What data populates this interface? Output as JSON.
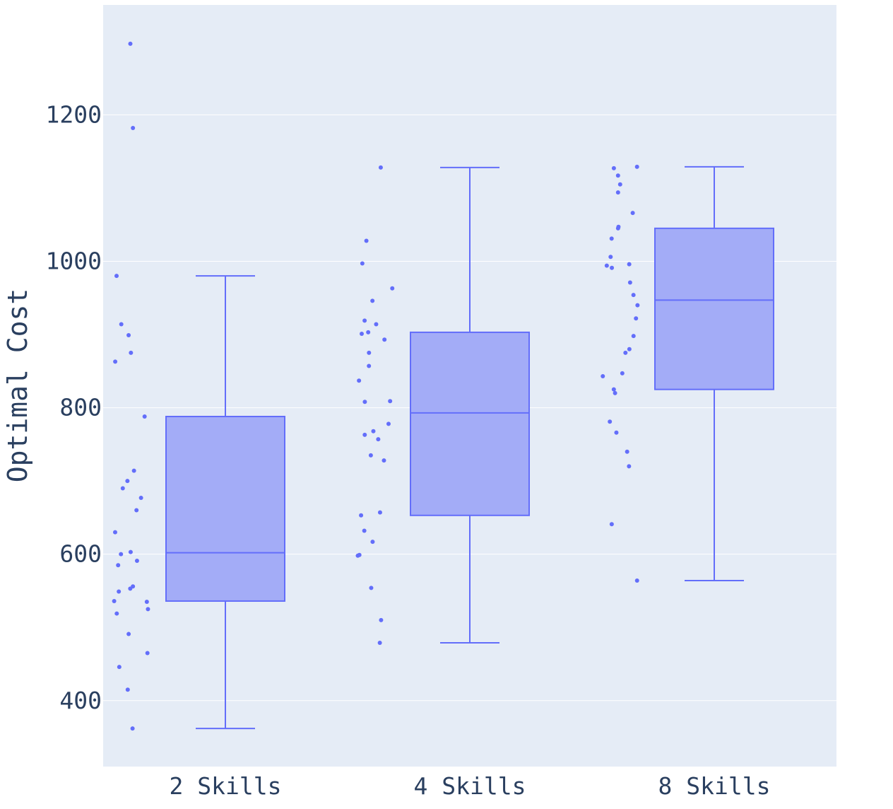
{
  "colors": {
    "plot_bg": "#e5ecf6",
    "grid": "#ffffff",
    "box_line": "#636efa",
    "box_fill": "#a3acf7",
    "text": "#2a3f5f"
  },
  "chart_data": {
    "type": "box",
    "ylabel": "Optimal Cost",
    "ylim": [
      310,
      1350
    ],
    "yticks": [
      400,
      600,
      800,
      1000,
      1200
    ],
    "grid": true,
    "boxpoints": "all",
    "categories": [
      "2 Skills",
      "4 Skills",
      "8 Skills"
    ],
    "boxes": [
      {
        "category": "2 Skills",
        "min": 362,
        "q1": 536,
        "median": 602,
        "q3": 788,
        "max": 980,
        "outliers": [
          1297,
          1182
        ],
        "points": [
          1297,
          1182,
          980,
          914,
          899,
          875,
          863,
          788,
          714,
          700,
          690,
          677,
          660,
          630,
          603,
          600,
          591,
          585,
          556,
          553,
          549,
          536,
          535,
          525,
          519,
          491,
          465,
          446,
          415,
          362
        ]
      },
      {
        "category": "4 Skills",
        "min": 479,
        "q1": 653,
        "median": 793,
        "q3": 903,
        "max": 1128,
        "outliers": [],
        "points": [
          1128,
          1028,
          997,
          963,
          946,
          919,
          914,
          903,
          901,
          893,
          875,
          857,
          837,
          809,
          808,
          778,
          768,
          763,
          757,
          735,
          728,
          657,
          653,
          632,
          617,
          599,
          598,
          554,
          510,
          479
        ]
      },
      {
        "category": "8 Skills",
        "min": 564,
        "q1": 825,
        "median": 947,
        "q3": 1045,
        "max": 1129,
        "outliers": [],
        "points": [
          1129,
          1127,
          1117,
          1105,
          1094,
          1066,
          1047,
          1045,
          1031,
          1006,
          996,
          994,
          991,
          971,
          954,
          940,
          922,
          898,
          880,
          875,
          847,
          843,
          825,
          820,
          781,
          766,
          740,
          720,
          641,
          564
        ]
      }
    ]
  }
}
